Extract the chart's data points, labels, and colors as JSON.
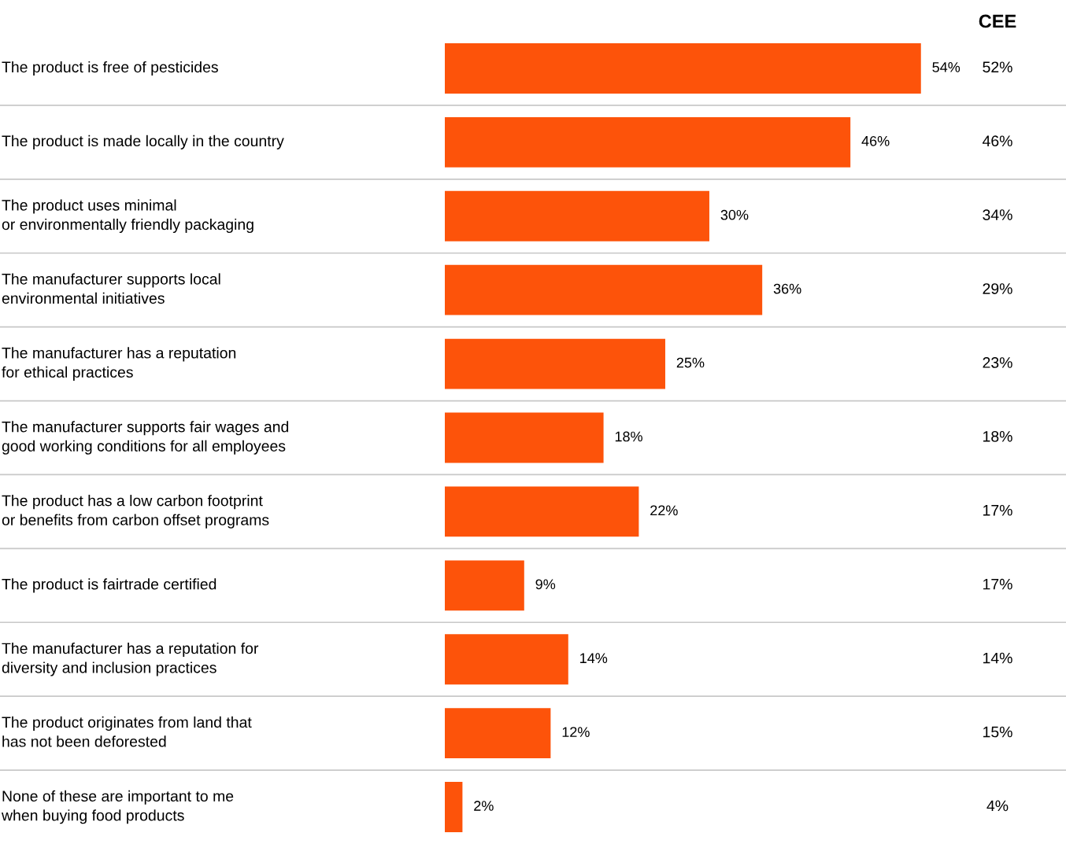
{
  "chart_data": {
    "type": "bar",
    "orientation": "horizontal",
    "categories": [
      "The product is free of pesticides",
      "The product is made locally in the country",
      "The product uses minimal\nor environmentally friendly packaging",
      "The manufacturer supports local\nenvironmental initiatives",
      "The manufacturer has a reputation\nfor ethical practices",
      "The manufacturer supports fair wages and\ngood working conditions for all employees",
      "The product has a low carbon footprint\nor benefits from carbon offset programs",
      "The product is fairtrade certified",
      "The manufacturer has a reputation for\ndiversity and inclusion practices",
      "The product originates from land that\nhas not been deforested",
      "None of these are important to me\nwhen buying food products"
    ],
    "series": [
      {
        "color": "#fd530a",
        "values": [
          54,
          46,
          30,
          36,
          25,
          18,
          22,
          9,
          14,
          12,
          2
        ],
        "value_labels": [
          "54%",
          "46%",
          "30%",
          "36%",
          "25%",
          "18%",
          "22%",
          "9%",
          "14%",
          "12%",
          "2%"
        ]
      }
    ],
    "annotations": [
      "CEE",
      "52%",
      "46%",
      "34%",
      "29%",
      "23%",
      "18%",
      "17%",
      "17%",
      "14%",
      "15%",
      "4%"
    ],
    "legend": false
  }
}
